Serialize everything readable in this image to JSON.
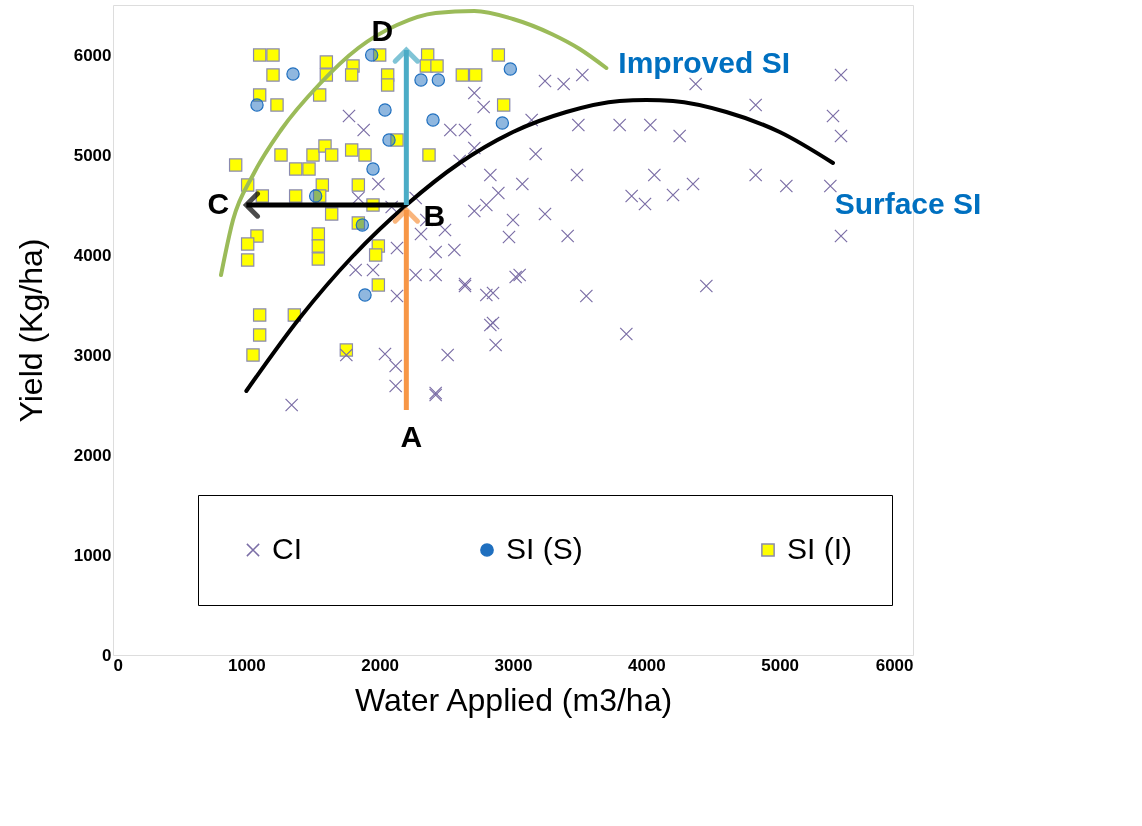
{
  "chart_data": {
    "type": "scatter",
    "xlabel": "Water Applied (m3/ha)",
    "ylabel": "Yield (Kg/ha)",
    "xlim": [
      0,
      6000
    ],
    "ylim": [
      0,
      6500
    ],
    "xticks": [
      0,
      1000,
      2000,
      3000,
      4000,
      5000,
      6000
    ],
    "yticks": [
      0,
      1000,
      2000,
      3000,
      4000,
      5000,
      6000
    ],
    "grid": false,
    "legend": "bottom",
    "series": [
      {
        "name": "CI",
        "marker": "cross",
        "color": "#7b6ea6",
        "x": [
          5460,
          4370,
          4820,
          5400,
          5460,
          3490,
          3800,
          4030,
          4250,
          4060,
          4820,
          5050,
          5380,
          4350,
          3890,
          4200,
          3990,
          5460,
          3410,
          3240,
          3480,
          4450,
          3850,
          3550,
          3050,
          2850,
          2870,
          2510,
          2420,
          2850,
          2640,
          2420,
          2970,
          2830,
          3070,
          3170,
          3380,
          3520,
          3240,
          2710,
          2640,
          2800,
          2560,
          2350,
          2040,
          2120,
          2120,
          2420,
          1340,
          1750,
          2130,
          2830,
          1820,
          2420,
          2800,
          2640,
          3020,
          1770,
          1880,
          1990,
          2090,
          1840,
          2530,
          2600,
          2710,
          2490,
          2310,
          2130,
          2270,
          2890,
          3000,
          2270,
          1950,
          2710,
          3140,
          2780
        ],
        "values": [
          5800,
          5710,
          5500,
          5390,
          5190,
          5300,
          5300,
          5300,
          5190,
          4800,
          4800,
          4690,
          4690,
          4710,
          4590,
          4600,
          4510,
          4190,
          4190,
          4410,
          4800,
          3690,
          3210,
          3590,
          3800,
          3320,
          3100,
          3000,
          2620,
          3620,
          3690,
          3800,
          4180,
          4800,
          4710,
          5010,
          5710,
          5800,
          5740,
          5620,
          5250,
          4500,
          4050,
          4350,
          3010,
          2890,
          2690,
          2600,
          2500,
          3000,
          3590,
          3300,
          3850,
          4030,
          3600,
          3710,
          3780,
          5390,
          5250,
          4710,
          4480,
          4570,
          5250,
          4940,
          4440,
          4250,
          4210,
          4070,
          4570,
          4620,
          4350,
          3800,
          3850,
          5070,
          5350,
          5480
        ]
      },
      {
        "name": "SI (S)",
        "marker": "circle",
        "color": "#1f6fbf",
        "x": [
          1350,
          1080,
          1940,
          2040,
          2070,
          1950,
          2310,
          2440,
          2400,
          2980,
          2920,
          1520,
          1870,
          1890
        ],
        "values": [
          5810,
          5500,
          6000,
          5450,
          5150,
          4860,
          5750,
          5750,
          5350,
          5860,
          5320,
          4590,
          4300,
          3600
        ]
      },
      {
        "name": "SI (I)",
        "marker": "square",
        "color": "#ffff00",
        "x": [
          1100,
          1200,
          1200,
          1100,
          1230,
          1550,
          1600,
          1600,
          1800,
          1790,
          2000,
          2060,
          2060,
          2360,
          2350,
          2430,
          2620,
          2720,
          2890,
          2930,
          2370,
          2130,
          1260,
          1500,
          1590,
          1640,
          1790,
          1890,
          1370,
          1470,
          920,
          1010,
          1120,
          1370,
          1570,
          1550,
          1840,
          1950,
          1640,
          1840,
          1540,
          1540,
          1540,
          1080,
          1010,
          1010,
          1990,
          1970,
          1990,
          1100,
          1360,
          1100,
          1050,
          1750
        ],
        "values": [
          6000,
          6000,
          5800,
          5600,
          5500,
          5600,
          5800,
          5930,
          5890,
          5800,
          6000,
          5800,
          5700,
          6000,
          5890,
          5890,
          5800,
          5800,
          6000,
          5500,
          5000,
          5150,
          5000,
          5000,
          5090,
          5000,
          5050,
          5000,
          4860,
          4860,
          4900,
          4700,
          4590,
          4590,
          4700,
          4590,
          4700,
          4500,
          4410,
          4320,
          4210,
          4090,
          3960,
          4190,
          4110,
          3950,
          4090,
          4000,
          3700,
          3400,
          3400,
          3200,
          3000,
          3050
        ]
      },
      {
        "name": "Improved SI",
        "type": "line",
        "marker": "none",
        "color": "#9bbb59",
        "x": [
          810,
          900,
          1050,
          1260,
          1550,
          1840,
          2130,
          2420,
          2710,
          3000,
          3290,
          3500,
          3700
        ],
        "values": [
          3800,
          4350,
          4800,
          5250,
          5710,
          6070,
          6300,
          6420,
          6440,
          6360,
          6210,
          6060,
          5870
        ]
      },
      {
        "name": "Surface SI",
        "type": "line",
        "marker": "none",
        "color": "#000000",
        "x": [
          1000,
          1400,
          1800,
          2200,
          2600,
          3000,
          3400,
          3800,
          4000,
          4200,
          4600,
          5000,
          5400
        ],
        "values": [
          2640,
          3370,
          3990,
          4500,
          4920,
          5230,
          5430,
          5540,
          5550,
          5540,
          5430,
          5230,
          4920
        ]
      },
      {
        "type": "line",
        "color": "#f79646",
        "x": [
          2200,
          2200
        ],
        "values": [
          2450,
          4450
        ]
      },
      {
        "type": "line",
        "color": "#000000",
        "x": [
          2200,
          1000
        ],
        "values": [
          4500,
          4500
        ]
      },
      {
        "type": "line",
        "color": "#4bacc6",
        "x": [
          2200,
          2200
        ],
        "values": [
          4500,
          6050
        ]
      }
    ],
    "annotations": [
      "A",
      {
        "text": "B",
        "x": 2200,
        "y": 4500
      },
      "C",
      "D"
    ]
  }
}
